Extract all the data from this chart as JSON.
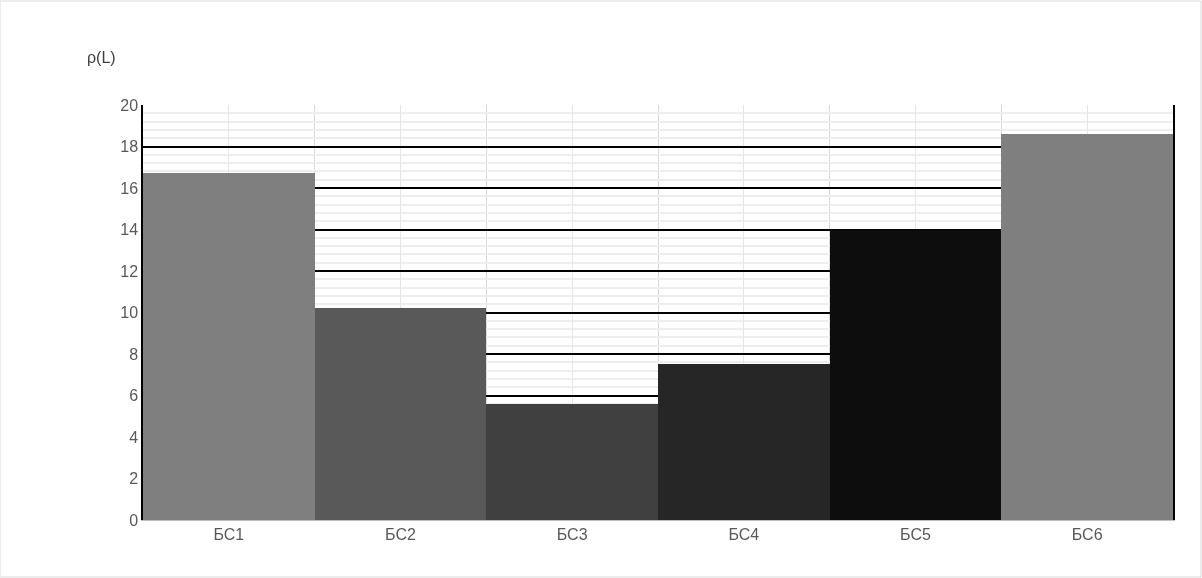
{
  "chart_data": {
    "type": "bar",
    "ylabel": "ρ(L)",
    "categories": [
      "БС1",
      "БС2",
      "БС3",
      "БС4",
      "БС5",
      "БС6"
    ],
    "values": [
      16.7,
      10.2,
      5.6,
      7.5,
      14.0,
      18.6
    ],
    "colors": [
      "#7f7f7f",
      "#595959",
      "#404040",
      "#262626",
      "#0d0d0d",
      "#7f7f7f"
    ],
    "ylim": [
      0,
      20
    ],
    "yticks": [
      0,
      2,
      4,
      6,
      8,
      10,
      12,
      14,
      16,
      18,
      20
    ],
    "grid": true
  }
}
